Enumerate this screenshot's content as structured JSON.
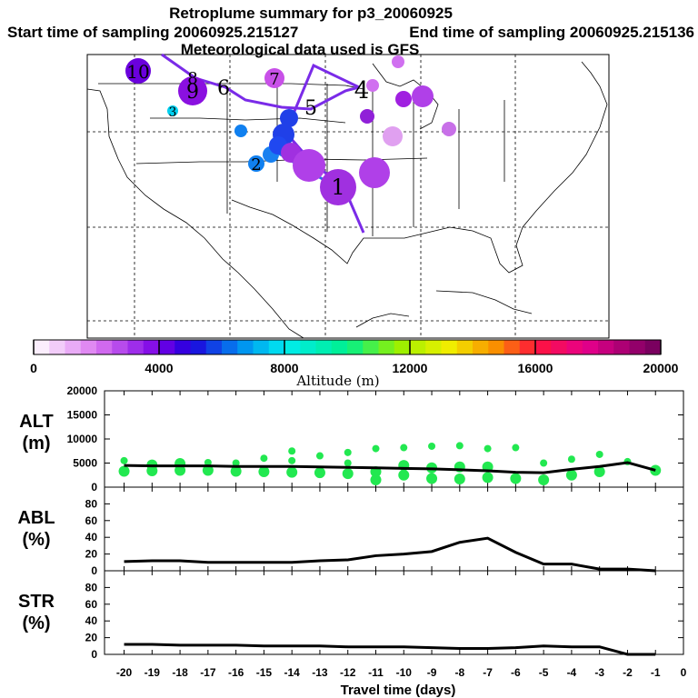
{
  "title": {
    "line1": "Retroplume summary for p3_20060925",
    "start": "Start time of sampling 20060925.215127",
    "end": "End time of sampling 20060925.215136",
    "met": "Meteorological data used is GFS"
  },
  "colorbar": {
    "label": "Altitude (m)",
    "ticks": [
      "0",
      "4000",
      "8000",
      "12000",
      "16000",
      "20000"
    ]
  },
  "map_labels": [
    {
      "text": "10",
      "color": "#6a00dd"
    },
    {
      "text": "9",
      "color": "#8a00e0"
    },
    {
      "text": "8",
      "color": "#a23be8"
    },
    {
      "text": "7",
      "color": "#c850e8"
    },
    {
      "text": "6",
      "color": "#b040e0"
    },
    {
      "text": "5",
      "color": "#9a30e0"
    },
    {
      "text": "4",
      "color": "#a020e0"
    },
    {
      "text": "3",
      "color": "#00c0f0"
    },
    {
      "text": "2",
      "color": "#1080f0"
    },
    {
      "text": "1",
      "color": "#9a30e0"
    }
  ],
  "chart_data": [
    {
      "type": "line",
      "panel": "ALT",
      "ylabel": "ALT\n(m)",
      "ylim": [
        0,
        20000
      ],
      "yticks": [
        "20000",
        "15000",
        "10000",
        "5000",
        "0"
      ],
      "x": [
        -20,
        -19,
        -18,
        -17,
        -16,
        -15,
        -14,
        -13,
        -12,
        -11,
        -10,
        -9,
        -8,
        -7,
        -6,
        -5,
        -4,
        -3,
        -2,
        -1
      ],
      "values": [
        4500,
        4400,
        4400,
        4400,
        4300,
        4300,
        4300,
        4200,
        4100,
        4000,
        3900,
        3800,
        3600,
        3400,
        3100,
        3000,
        3700,
        4300,
        5100,
        3500
      ],
      "scatter": [
        {
          "x": -20,
          "y": 5500
        },
        {
          "x": -20,
          "y": 3300
        },
        {
          "x": -19,
          "y": 4600
        },
        {
          "x": -19,
          "y": 3400
        },
        {
          "x": -18,
          "y": 4900
        },
        {
          "x": -18,
          "y": 3500
        },
        {
          "x": -17,
          "y": 5100
        },
        {
          "x": -17,
          "y": 3500
        },
        {
          "x": -16,
          "y": 5000
        },
        {
          "x": -16,
          "y": 3300
        },
        {
          "x": -15,
          "y": 6000
        },
        {
          "x": -15,
          "y": 3200
        },
        {
          "x": -14,
          "y": 7500
        },
        {
          "x": -14,
          "y": 5500
        },
        {
          "x": -14,
          "y": 3100
        },
        {
          "x": -13,
          "y": 6500
        },
        {
          "x": -13,
          "y": 3000
        },
        {
          "x": -12,
          "y": 7200
        },
        {
          "x": -12,
          "y": 5000
        },
        {
          "x": -12,
          "y": 2800
        },
        {
          "x": -11,
          "y": 8000
        },
        {
          "x": -11,
          "y": 3200
        },
        {
          "x": -11,
          "y": 1500
        },
        {
          "x": -10,
          "y": 8200
        },
        {
          "x": -10,
          "y": 4500
        },
        {
          "x": -10,
          "y": 2500
        },
        {
          "x": -9,
          "y": 8500
        },
        {
          "x": -9,
          "y": 4000
        },
        {
          "x": -9,
          "y": 1800
        },
        {
          "x": -8,
          "y": 8600
        },
        {
          "x": -8,
          "y": 4200
        },
        {
          "x": -8,
          "y": 1700
        },
        {
          "x": -7,
          "y": 8000
        },
        {
          "x": -7,
          "y": 4200
        },
        {
          "x": -7,
          "y": 2000
        },
        {
          "x": -6,
          "y": 8200
        },
        {
          "x": -6,
          "y": 1800
        },
        {
          "x": -5,
          "y": 5000
        },
        {
          "x": -5,
          "y": 1500
        },
        {
          "x": -4,
          "y": 5800
        },
        {
          "x": -4,
          "y": 2500
        },
        {
          "x": -3,
          "y": 6800
        },
        {
          "x": -3,
          "y": 3200
        },
        {
          "x": -2,
          "y": 5300
        },
        {
          "x": -1,
          "y": 3500
        }
      ],
      "scatter_color": "#22e850"
    },
    {
      "type": "line",
      "panel": "ABL",
      "ylabel": "ABL\n(%)",
      "ylim": [
        0,
        100
      ],
      "yticks": [
        "80",
        "60",
        "40",
        "20",
        "0"
      ],
      "x": [
        -20,
        -19,
        -18,
        -17,
        -16,
        -15,
        -14,
        -13,
        -12,
        -11,
        -10,
        -9,
        -8,
        -7,
        -6,
        -5,
        -4,
        -3,
        -2,
        -1
      ],
      "values": [
        11,
        12,
        12,
        10,
        10,
        10,
        10,
        12,
        13,
        18,
        20,
        23,
        34,
        39,
        22,
        8,
        8,
        2,
        2,
        0
      ]
    },
    {
      "type": "line",
      "panel": "STR",
      "ylabel": "STR\n(%)",
      "ylim": [
        0,
        100
      ],
      "yticks": [
        "80",
        "60",
        "40",
        "20",
        "0"
      ],
      "x": [
        -20,
        -19,
        -18,
        -17,
        -16,
        -15,
        -14,
        -13,
        -12,
        -11,
        -10,
        -9,
        -8,
        -7,
        -6,
        -5,
        -4,
        -3,
        -2,
        -1
      ],
      "values": [
        12,
        12,
        11,
        11,
        11,
        10,
        10,
        10,
        9,
        9,
        9,
        8,
        7,
        7,
        8,
        10,
        9,
        9,
        0,
        0
      ]
    }
  ],
  "xaxis": {
    "label": "Travel time (days)",
    "ticks": [
      "-20",
      "-19",
      "-18",
      "-17",
      "-16",
      "-15",
      "-14",
      "-13",
      "-12",
      "-11",
      "-10",
      "-9",
      "-8",
      "-7",
      "-6",
      "-5",
      "-4",
      "-3",
      "-2",
      "-1",
      "0"
    ]
  }
}
